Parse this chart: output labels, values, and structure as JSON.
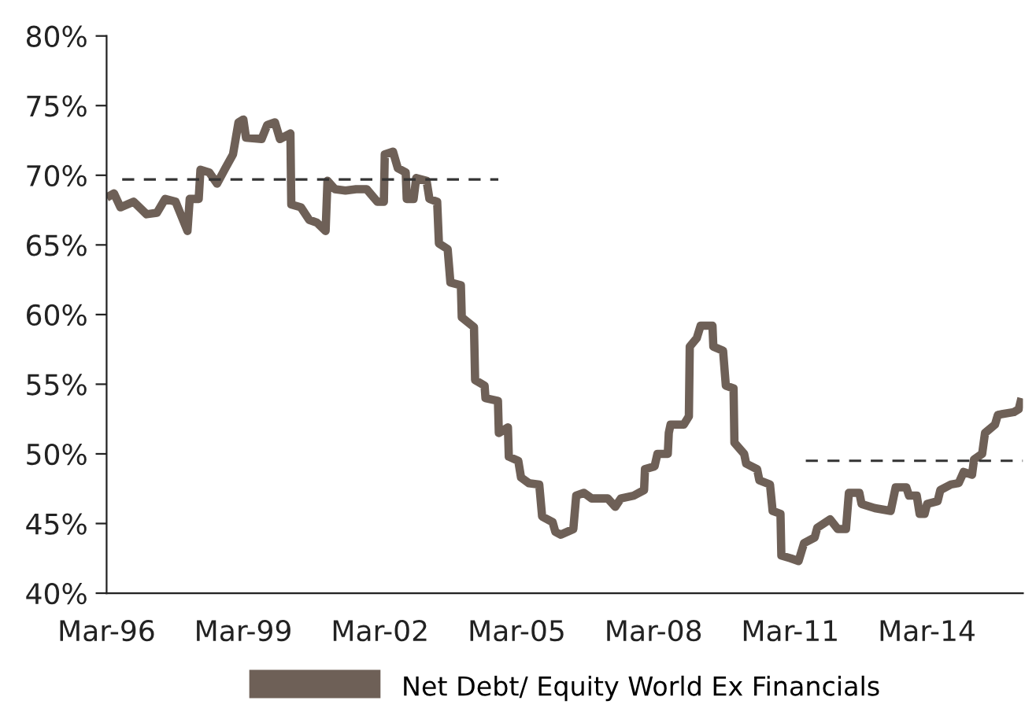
{
  "chart_data": {
    "type": "line",
    "xlim": [
      "1996-03-01",
      "2016-04-08"
    ],
    "ylim": [
      40,
      80
    ],
    "xticks": [
      {
        "value": "1996-03-01",
        "label": "Mar-96"
      },
      {
        "value": "1999-03-01",
        "label": "Mar-99"
      },
      {
        "value": "2002-03-01",
        "label": "Mar-02"
      },
      {
        "value": "2005-03-01",
        "label": "Mar-05"
      },
      {
        "value": "2008-03-01",
        "label": "Mar-08"
      },
      {
        "value": "2011-03-01",
        "label": "Mar-11"
      },
      {
        "value": "2014-03-01",
        "label": "Mar-14"
      }
    ],
    "yticks": [
      {
        "value": 40,
        "label": "40%"
      },
      {
        "value": 45,
        "label": "45%"
      },
      {
        "value": 50,
        "label": "50%"
      },
      {
        "value": 55,
        "label": "55%"
      },
      {
        "value": 60,
        "label": "60%"
      },
      {
        "value": 65,
        "label": "65%"
      },
      {
        "value": 70,
        "label": "70%"
      },
      {
        "value": 75,
        "label": "75%"
      },
      {
        "value": 80,
        "label": "80%"
      }
    ],
    "grid": false,
    "legend": "bottom",
    "marker": "none",
    "line_style": "solid",
    "series": [
      {
        "name": "Net Debt/ Equity World Ex Financials",
        "color": "#6e6057",
        "x": [
          "1996-03-02",
          "1996-04-29",
          "1996-06-20",
          "1996-10-04",
          "1997-01-15",
          "1997-04-08",
          "1997-06-13",
          "1997-09-05",
          "1997-12-09",
          "1997-12-27",
          "1998-03-09",
          "1998-03-23",
          "1998-06-02",
          "1998-08-03",
          "1998-10-08",
          "1998-12-09",
          "1999-01-22",
          "1999-03-02",
          "1999-03-23",
          "1999-07-26",
          "1999-09-09",
          "1999-11-10",
          "1999-12-20",
          "2000-03-13",
          "2000-03-20",
          "2000-06-05",
          "2000-08-10",
          "2000-10-11",
          "2000-12-20",
          "2001-01-04",
          "2001-03-05",
          "2001-05-28",
          "2001-08-21",
          "2001-11-14",
          "2002-02-07",
          "2002-04-01",
          "2002-04-08",
          "2002-06-13",
          "2002-07-22",
          "2002-09-23",
          "2002-10-01",
          "2002-11-25",
          "2002-12-16",
          "2003-03-09",
          "2003-04-01",
          "2003-06-02",
          "2003-06-16",
          "2003-08-25",
          "2003-09-16",
          "2003-12-09",
          "2003-12-16",
          "2004-03-23",
          "2004-04-01",
          "2004-06-16",
          "2004-06-23",
          "2004-10-01",
          "2004-10-08",
          "2004-12-20",
          "2004-12-27",
          "2005-03-13",
          "2005-04-04",
          "2005-06-05",
          "2005-08-28",
          "2005-09-20",
          "2005-12-13",
          "2006-01-04",
          "2006-02-17",
          "2006-05-28",
          "2006-06-20",
          "2006-08-21",
          "2006-10-22",
          "2007-02-28",
          "2007-04-29",
          "2007-06-13",
          "2007-09-23",
          "2007-12-16",
          "2007-12-23",
          "2008-03-09",
          "2008-04-01",
          "2008-06-23",
          "2008-07-01",
          "2008-07-15",
          "2008-10-29",
          "2008-12-09",
          "2008-12-16",
          "2009-02-10",
          "2009-03-13",
          "2009-06-16",
          "2009-06-23",
          "2009-09-09",
          "2009-10-01",
          "2009-12-02",
          "2009-12-09",
          "2010-02-25",
          "2010-03-13",
          "2010-06-09",
          "2010-06-27",
          "2010-09-20",
          "2010-10-11",
          "2010-12-13",
          "2010-12-20",
          "2011-03-05",
          "2011-05-07",
          "2011-06-20",
          "2011-09-13",
          "2011-10-04",
          "2012-01-15",
          "2012-03-16",
          "2012-05-21",
          "2012-06-13",
          "2012-09-05",
          "2012-09-23",
          "2013-01-08",
          "2013-05-14",
          "2013-06-23",
          "2013-09-16",
          "2013-10-08",
          "2013-12-09",
          "2014-01-01",
          "2014-02-10",
          "2014-03-02",
          "2014-05-25",
          "2014-06-16",
          "2014-09-09",
          "2014-11-10",
          "2014-12-20",
          "2015-02-25",
          "2015-03-13",
          "2015-05-17",
          "2015-06-09",
          "2015-08-28",
          "2015-09-20",
          "2016-01-26",
          "2016-03-05",
          "2016-03-27"
        ],
        "values": [
          68.4,
          68.7,
          67.7,
          68.1,
          67.2,
          67.3,
          68.3,
          68.1,
          66.0,
          68.3,
          68.3,
          70.4,
          70.2,
          69.4,
          70.5,
          71.5,
          73.8,
          74.0,
          72.7,
          72.6,
          73.6,
          73.8,
          72.6,
          73.0,
          67.9,
          67.7,
          66.8,
          66.6,
          66.0,
          69.6,
          69.0,
          68.9,
          69.0,
          69.0,
          68.1,
          68.1,
          71.5,
          71.7,
          70.5,
          70.2,
          68.3,
          68.3,
          69.8,
          69.6,
          68.3,
          68.1,
          65.1,
          64.7,
          62.3,
          62.1,
          59.8,
          59.1,
          55.3,
          54.9,
          54.0,
          53.8,
          51.5,
          51.9,
          49.8,
          49.5,
          48.3,
          47.9,
          47.8,
          45.5,
          45.1,
          44.4,
          44.2,
          44.6,
          47.0,
          47.2,
          46.8,
          46.8,
          46.2,
          46.8,
          47.0,
          47.4,
          48.9,
          49.1,
          50.0,
          50.0,
          51.5,
          52.1,
          52.1,
          52.7,
          57.7,
          58.3,
          59.2,
          59.2,
          57.7,
          57.4,
          54.9,
          54.7,
          50.8,
          50.0,
          49.3,
          48.9,
          48.1,
          47.8,
          45.9,
          45.7,
          42.7,
          42.5,
          42.3,
          43.6,
          44.0,
          44.7,
          45.3,
          44.6,
          44.6,
          47.2,
          47.2,
          46.4,
          46.1,
          45.9,
          47.6,
          47.6,
          47.0,
          47.0,
          45.7,
          45.7,
          46.4,
          46.6,
          47.4,
          47.8,
          47.9,
          48.7,
          48.5,
          49.6,
          50.0,
          51.5,
          52.1,
          52.8,
          53.0,
          53.2,
          54.0
        ]
      },
      {
        "color": "#333333",
        "line_style": "dashed",
        "x": [
          "1996-07-04",
          "2004-10-04"
        ],
        "values": [
          69.7,
          69.7
        ]
      },
      {
        "color": "#333333",
        "line_style": "dashed",
        "x": [
          "2011-07-04",
          "2016-04-08"
        ],
        "values": [
          49.5,
          49.5
        ]
      }
    ]
  }
}
